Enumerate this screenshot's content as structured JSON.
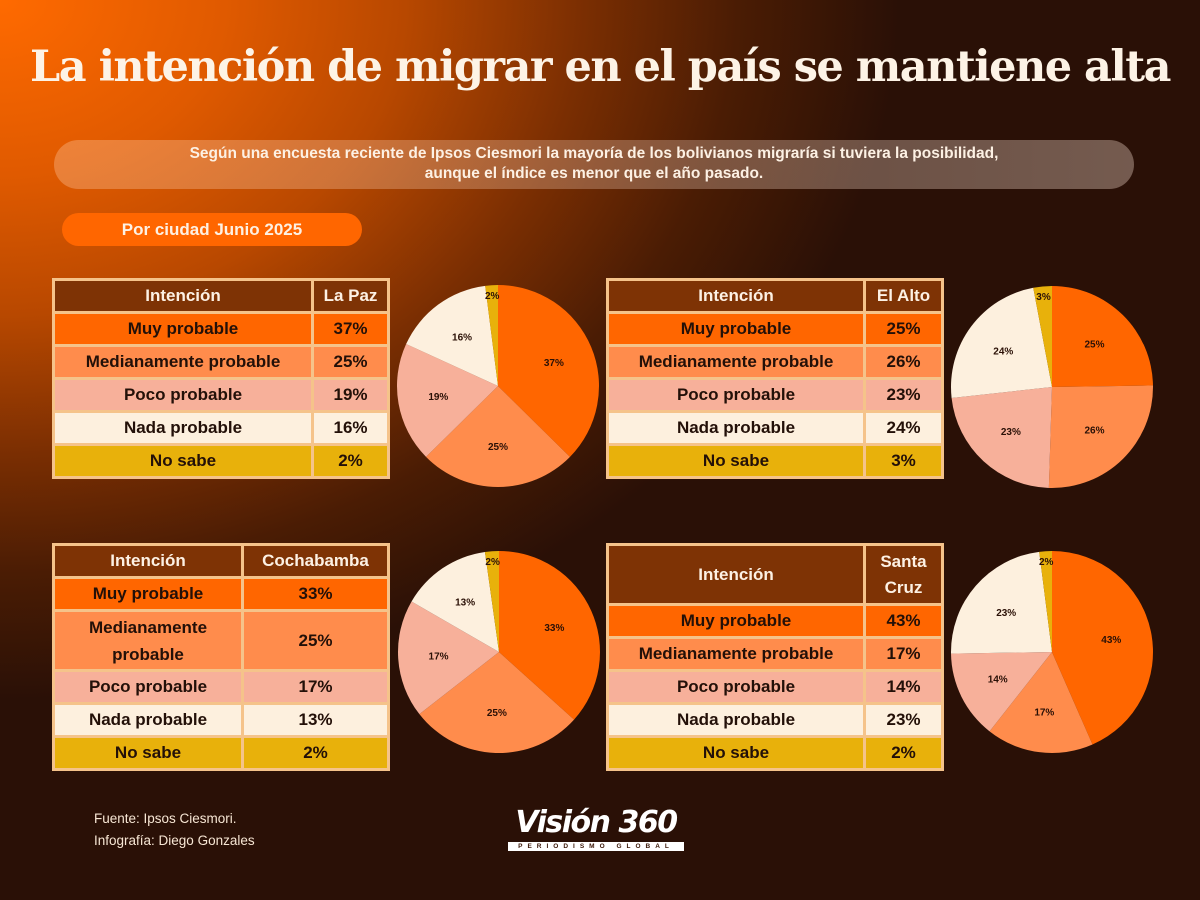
{
  "title": "La intención de migrar en el país se mantiene alta",
  "subtitle_line1": "Según una encuesta reciente de Ipsos Ciesmori la mayoría de los bolivianos migraría si tuviera la posibilidad,",
  "subtitle_line2": "aunque el índice es menor que el año pasado.",
  "period_label": "Por ciudad Junio 2025",
  "colors": {
    "muy_probable": "#ff6600",
    "medianamente_probable": "#ff8c4c",
    "poco_probable": "#f7b09a",
    "nada_probable": "#fdf0de",
    "no_sabe": "#e8b10b",
    "header_bg": "#7e3305",
    "border": "#f5c38a"
  },
  "tables": {
    "header_intention": "Intención",
    "la_paz": {
      "city": "La Paz",
      "rows": [
        {
          "label": "Muy probable",
          "value": "37%"
        },
        {
          "label": "Medianamente probable",
          "value": "25%"
        },
        {
          "label": "Poco probable",
          "value": "19%"
        },
        {
          "label": "Nada probable",
          "value": "16%"
        },
        {
          "label": "No sabe",
          "value": "2%"
        }
      ]
    },
    "el_alto": {
      "city": "El Alto",
      "rows": [
        {
          "label": "Muy probable",
          "value": "25%"
        },
        {
          "label": "Medianamente probable",
          "value": "26%"
        },
        {
          "label": "Poco probable",
          "value": "23%"
        },
        {
          "label": "Nada probable",
          "value": "24%"
        },
        {
          "label": "No sabe",
          "value": "3%"
        }
      ]
    },
    "cochabamba": {
      "city": "Cochabamba",
      "rows": [
        {
          "label": "Muy probable",
          "value": "33%"
        },
        {
          "label": "Medianamente probable",
          "value": "25%"
        },
        {
          "label": "Poco probable",
          "value": "17%"
        },
        {
          "label": "Nada probable",
          "value": "13%"
        },
        {
          "label": "No sabe",
          "value": "2%"
        }
      ]
    },
    "santa_cruz": {
      "city_line1": "Santa",
      "city_line2": "Cruz",
      "rows": [
        {
          "label": "Muy probable",
          "value": "43%"
        },
        {
          "label": "Medianamente probable",
          "value": "17%"
        },
        {
          "label": "Poco probable",
          "value": "14%"
        },
        {
          "label": "Nada probable",
          "value": "23%"
        },
        {
          "label": "No sabe",
          "value": "2%"
        }
      ]
    }
  },
  "chart_data": [
    {
      "type": "pie",
      "title": "La Paz",
      "categories": [
        "Muy probable",
        "Medianamente probable",
        "Poco probable",
        "Nada probable",
        "No sabe"
      ],
      "values": [
        37,
        25,
        19,
        16,
        2
      ],
      "labels": [
        "37%",
        "25%",
        "19%",
        "16%",
        "2%"
      ]
    },
    {
      "type": "pie",
      "title": "El Alto",
      "categories": [
        "Muy probable",
        "Medianamente probable",
        "Poco probable",
        "Nada probable",
        "No sabe"
      ],
      "values": [
        25,
        26,
        23,
        24,
        3
      ],
      "labels": [
        "25%",
        "26%",
        "23%",
        "24%",
        "3%"
      ]
    },
    {
      "type": "pie",
      "title": "Cochabamba",
      "categories": [
        "Muy probable",
        "Medianamente probable",
        "Poco probable",
        "Nada probable",
        "No sabe"
      ],
      "values": [
        33,
        25,
        17,
        13,
        2
      ],
      "labels": [
        "33%",
        "25%",
        "17%",
        "13%",
        "2%"
      ]
    },
    {
      "type": "pie",
      "title": "Santa Cruz",
      "categories": [
        "Muy probable",
        "Medianamente probable",
        "Poco probable",
        "Nada probable",
        "No sabe"
      ],
      "values": [
        43,
        17,
        14,
        23,
        2
      ],
      "labels": [
        "43%",
        "17%",
        "14%",
        "23%",
        "2%"
      ]
    }
  ],
  "footer": {
    "source": "Fuente: Ipsos Ciesmori.",
    "credit": "Infografía: Diego Gonzales"
  },
  "logo": {
    "name": "Visión 360",
    "tagline": "PERIODISMO GLOBAL"
  }
}
